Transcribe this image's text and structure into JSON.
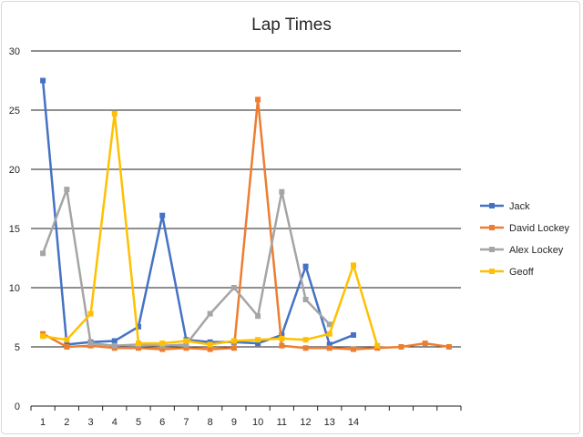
{
  "chart_data": {
    "type": "line",
    "title": "Lap Times",
    "xlabel": "",
    "ylabel": "",
    "ylim": [
      0,
      30
    ],
    "yticks": [
      0,
      5,
      10,
      15,
      20,
      25,
      30
    ],
    "xticks": [
      "1",
      "2",
      "3",
      "4",
      "5",
      "6",
      "7",
      "8",
      "9",
      "10",
      "11",
      "12",
      "13",
      "14"
    ],
    "x_count": 18,
    "grid": true,
    "legend": "right",
    "series": [
      {
        "name": "Jack",
        "color": "#4472c4",
        "values": [
          27.5,
          5.2,
          5.4,
          5.5,
          6.7,
          16.1,
          5.6,
          5.4,
          5.4,
          5.3,
          6.0,
          11.8,
          5.2,
          6.0,
          null,
          null,
          null,
          null
        ]
      },
      {
        "name": "David Lockey",
        "color": "#ed7d31",
        "values": [
          6.1,
          5.0,
          5.1,
          4.9,
          4.9,
          4.8,
          4.9,
          4.8,
          4.9,
          25.9,
          5.1,
          4.9,
          4.9,
          4.8,
          4.9,
          5.0,
          5.3,
          5.0
        ]
      },
      {
        "name": "Alex Lockey",
        "color": "#a5a5a5",
        "values": [
          12.9,
          18.3,
          5.3,
          5.1,
          5.2,
          5.1,
          5.2,
          7.8,
          10.0,
          7.6,
          18.1,
          9.0,
          6.9,
          null,
          null,
          null,
          null,
          null
        ]
      },
      {
        "name": "Geoff",
        "color": "#ffc000",
        "values": [
          5.9,
          5.6,
          7.8,
          24.7,
          5.3,
          5.3,
          5.5,
          5.2,
          5.5,
          5.6,
          5.7,
          5.6,
          6.1,
          11.9,
          5.1,
          null,
          null,
          null
        ]
      }
    ]
  }
}
